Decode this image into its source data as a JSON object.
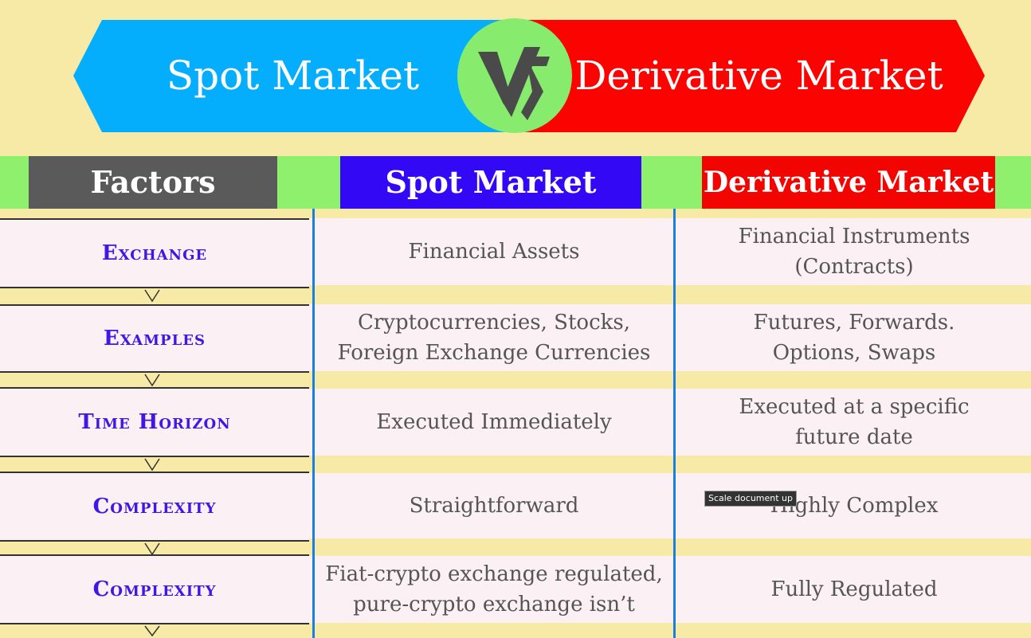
{
  "banner": {
    "left_title": "Spot Market",
    "right_title": "Derivative Market",
    "logo_icon": "vs-icon",
    "colors": {
      "left": "#05aefc",
      "right": "#fb0300",
      "badge": "#87ec6e"
    }
  },
  "header": {
    "factors": "Factors",
    "spot": "Spot Market",
    "derivative": "Derivative Market"
  },
  "rows": [
    {
      "factor": "Exchange",
      "spot": "Financial Assets",
      "derivative": "Financial Instruments (Contracts)"
    },
    {
      "factor": "Examples",
      "spot": "Cryptocurrencies, Stocks, Foreign Exchange Currencies",
      "derivative": "Futures, Forwards. Options, Swaps"
    },
    {
      "factor": "Time Horizon",
      "spot": "Executed Immediately",
      "derivative": "Executed at a specific future date"
    },
    {
      "factor": "Complexity",
      "spot": "Straightforward",
      "derivative": "Highly Complex"
    },
    {
      "factor": "Complexity",
      "spot": "Fiat-crypto exchange regulated, pure-crypto exchange isn’t",
      "derivative": "Fully Regulated"
    }
  ],
  "tooltip": "Scale document up"
}
